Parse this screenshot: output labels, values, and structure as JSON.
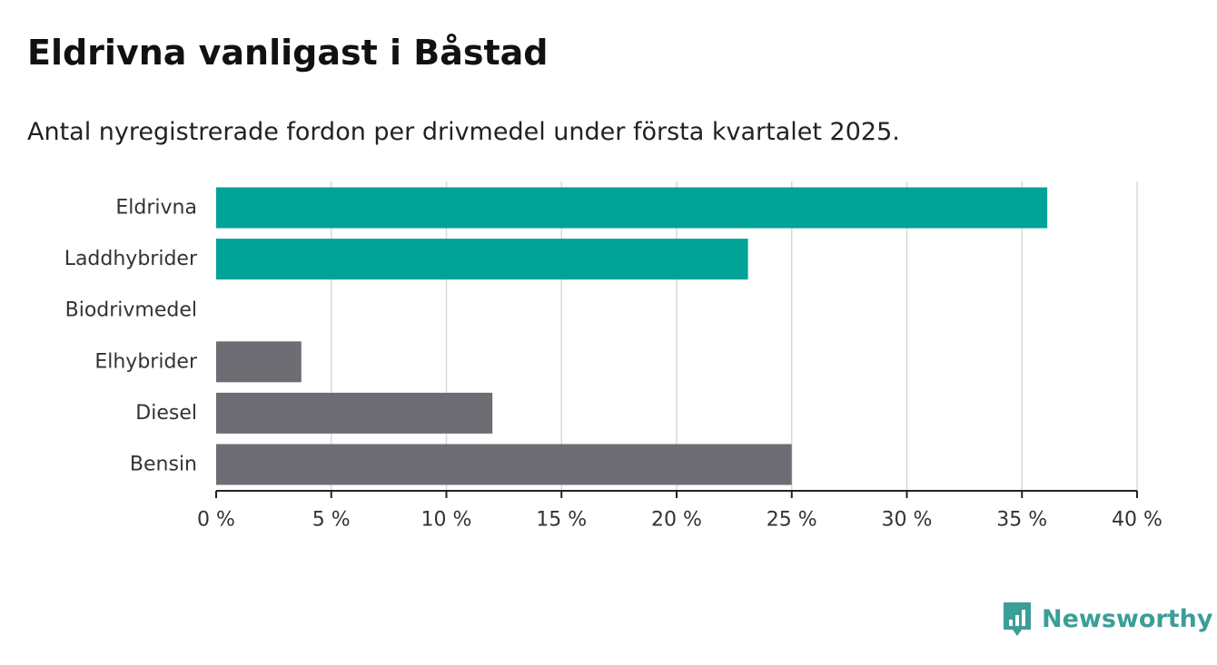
{
  "header": {
    "title": "Eldrivna vanligast i Båstad",
    "subtitle": "Antal nyregistrerade fordon per drivmedel under första kvartalet 2025."
  },
  "chart_data": {
    "type": "bar",
    "orientation": "horizontal",
    "categories": [
      "Eldrivna",
      "Laddhybrider",
      "Biodrivmedel",
      "Elhybrider",
      "Diesel",
      "Bensin"
    ],
    "values": [
      36.1,
      23.1,
      0,
      3.7,
      12.0,
      25.0
    ],
    "unit": "%",
    "xlim": [
      0,
      40
    ],
    "x_ticks": [
      0,
      5,
      10,
      15,
      20,
      25,
      30,
      35,
      40
    ],
    "x_tick_labels": [
      "0 %",
      "5 %",
      "10 %",
      "15 %",
      "20 %",
      "25 %",
      "30 %",
      "35 %",
      "40 %"
    ],
    "grid": true,
    "colors": {
      "highlight": "#00a398",
      "default": "#6e6d73",
      "grid": "#d9d9d9",
      "axis": "#222222"
    },
    "bar_colors": [
      "highlight",
      "highlight",
      "default",
      "default",
      "default",
      "default"
    ]
  },
  "logo": {
    "text": "Newsworthy",
    "icon": "newsworthy-chart-icon",
    "color": "#3b9e98"
  }
}
